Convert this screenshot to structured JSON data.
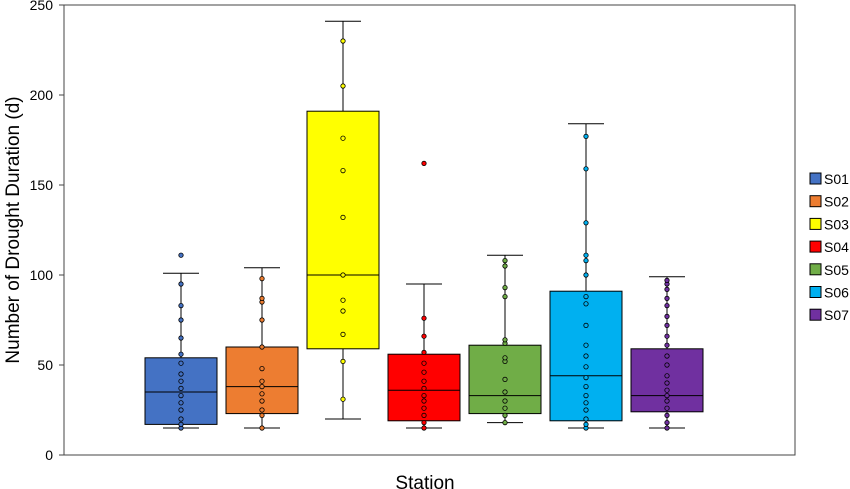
{
  "chart_data": {
    "type": "box",
    "title": "",
    "xlabel": "Station",
    "ylabel": "Number of Drought Duration (d)",
    "ylim": [
      0,
      250
    ],
    "yticks": [
      0,
      50,
      100,
      150,
      200,
      250
    ],
    "grid": false,
    "legend_position": "right",
    "series": [
      {
        "name": "S01",
        "color": "#4472C4",
        "q1": 17,
        "median": 35,
        "q3": 54,
        "whisker_low": 15,
        "whisker_high": 101,
        "points": [
          15,
          17,
          20,
          25,
          29,
          33,
          37,
          41,
          45,
          51,
          56,
          65,
          75,
          83,
          95,
          111
        ]
      },
      {
        "name": "S02",
        "color": "#ED7D31",
        "q1": 23,
        "median": 38,
        "q3": 60,
        "whisker_low": 15,
        "whisker_high": 104,
        "points": [
          15,
          22,
          25,
          30,
          34,
          38,
          41,
          48,
          60,
          75,
          85,
          87,
          98
        ]
      },
      {
        "name": "S03",
        "color": "#FFFF00",
        "q1": 59,
        "median": 100,
        "q3": 191,
        "whisker_low": 20,
        "whisker_high": 241,
        "points": [
          31,
          52,
          67,
          80,
          86,
          100,
          132,
          158,
          176,
          205,
          230
        ]
      },
      {
        "name": "S04",
        "color": "#FF0000",
        "q1": 19,
        "median": 36,
        "q3": 56,
        "whisker_low": 15,
        "whisker_high": 95,
        "points": [
          15,
          18,
          22,
          26,
          30,
          33,
          37,
          41,
          46,
          51,
          57,
          66,
          76,
          162
        ]
      },
      {
        "name": "S05",
        "color": "#70AD47",
        "q1": 23,
        "median": 33,
        "q3": 61,
        "whisker_low": 18,
        "whisker_high": 111,
        "points": [
          18,
          22,
          26,
          30,
          35,
          42,
          52,
          54,
          62,
          64,
          88,
          93,
          105,
          108
        ]
      },
      {
        "name": "S06",
        "color": "#00B0F0",
        "q1": 19,
        "median": 44,
        "q3": 91,
        "whisker_low": 15,
        "whisker_high": 184,
        "points": [
          15,
          17,
          20,
          25,
          29,
          33,
          38,
          43,
          49,
          55,
          61,
          72,
          84,
          88,
          100,
          108,
          111,
          129,
          159,
          177
        ]
      },
      {
        "name": "S07",
        "color": "#7030A0",
        "q1": 24,
        "median": 33,
        "q3": 59,
        "whisker_low": 15,
        "whisker_high": 99,
        "points": [
          15,
          18,
          22,
          26,
          30,
          33,
          36,
          40,
          44,
          50,
          55,
          61,
          66,
          72,
          77,
          83,
          87,
          92,
          95,
          97
        ]
      }
    ]
  }
}
